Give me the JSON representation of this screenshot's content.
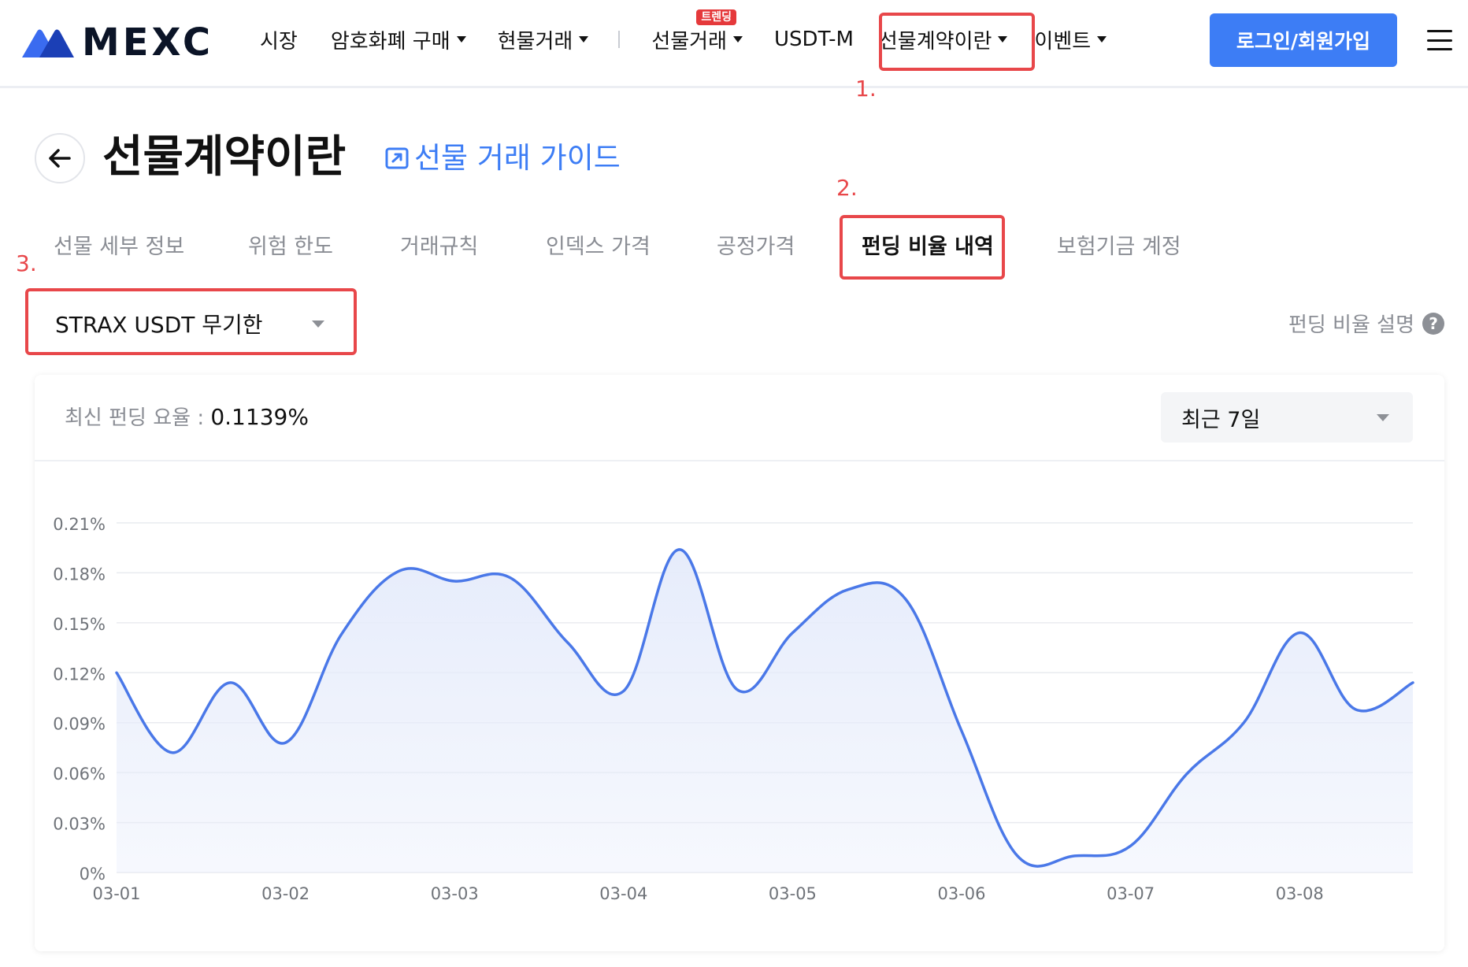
{
  "header": {
    "logo_text": "MEXC",
    "nav": [
      {
        "label": "시장",
        "dropdown": false
      },
      {
        "label": "암호화폐 구매",
        "dropdown": true
      },
      {
        "label": "현물거래",
        "dropdown": true
      },
      {
        "label": "선물거래",
        "dropdown": true,
        "badge": "트렌딩"
      },
      {
        "label": "USDT-M",
        "dropdown": false
      },
      {
        "label": "선물계약이란",
        "dropdown": true
      },
      {
        "label": "이벤트",
        "dropdown": true
      }
    ],
    "login_label": "로그인/회원가입"
  },
  "annotations": {
    "step1": "1.",
    "step2": "2.",
    "step3": "3.",
    "color": "#e8474a"
  },
  "page": {
    "title": "선물계약이란",
    "guide_link": "선물 거래 가이드"
  },
  "tabs": [
    {
      "label": "선물 세부 정보",
      "active": false
    },
    {
      "label": "위험 한도",
      "active": false
    },
    {
      "label": "거래규칙",
      "active": false
    },
    {
      "label": "인덱스 가격",
      "active": false
    },
    {
      "label": "공정가격",
      "active": false
    },
    {
      "label": "펀딩 비율 내역",
      "active": true
    },
    {
      "label": "보험기금 계정",
      "active": false
    }
  ],
  "contract_select": {
    "value": "STRAX USDT 무기한"
  },
  "funding_rate_explain": "펀딩 비율 설명",
  "chart_header": {
    "latest_label": "최신 펀딩 요율 : ",
    "latest_value": "0.1139%",
    "period_value": "최근 7일"
  },
  "colors": {
    "accent": "#3d7df5",
    "line": "#4a78e8",
    "area": "#e6ecfb",
    "highlight": "#e8474a"
  },
  "chart_data": {
    "type": "area",
    "title": "",
    "xlabel": "",
    "ylabel": "",
    "x_ticks": [
      "03-01",
      "03-02",
      "03-03",
      "03-04",
      "03-05",
      "03-06",
      "03-07",
      "03-08"
    ],
    "y_ticks": [
      "0%",
      "0.03%",
      "0.06%",
      "0.09%",
      "0.12%",
      "0.15%",
      "0.18%",
      "0.21%"
    ],
    "ylim": [
      0,
      0.21
    ],
    "xlim": [
      0,
      7.67
    ],
    "grid": true,
    "unit": "%",
    "series": [
      {
        "x": [
          0,
          0.33,
          0.67,
          1.0,
          1.33,
          1.67,
          2.0,
          2.33,
          2.67,
          3.0,
          3.33,
          3.67,
          4.0,
          4.33,
          4.67,
          5.0,
          5.33,
          5.67,
          6.0,
          6.33,
          6.67,
          7.0,
          7.33,
          7.67
        ],
        "values": [
          0.12,
          0.072,
          0.114,
          0.078,
          0.143,
          0.181,
          0.175,
          0.177,
          0.138,
          0.109,
          0.194,
          0.11,
          0.144,
          0.17,
          0.164,
          0.085,
          0.01,
          0.01,
          0.016,
          0.059,
          0.09,
          0.144,
          0.098,
          0.114
        ]
      }
    ]
  }
}
